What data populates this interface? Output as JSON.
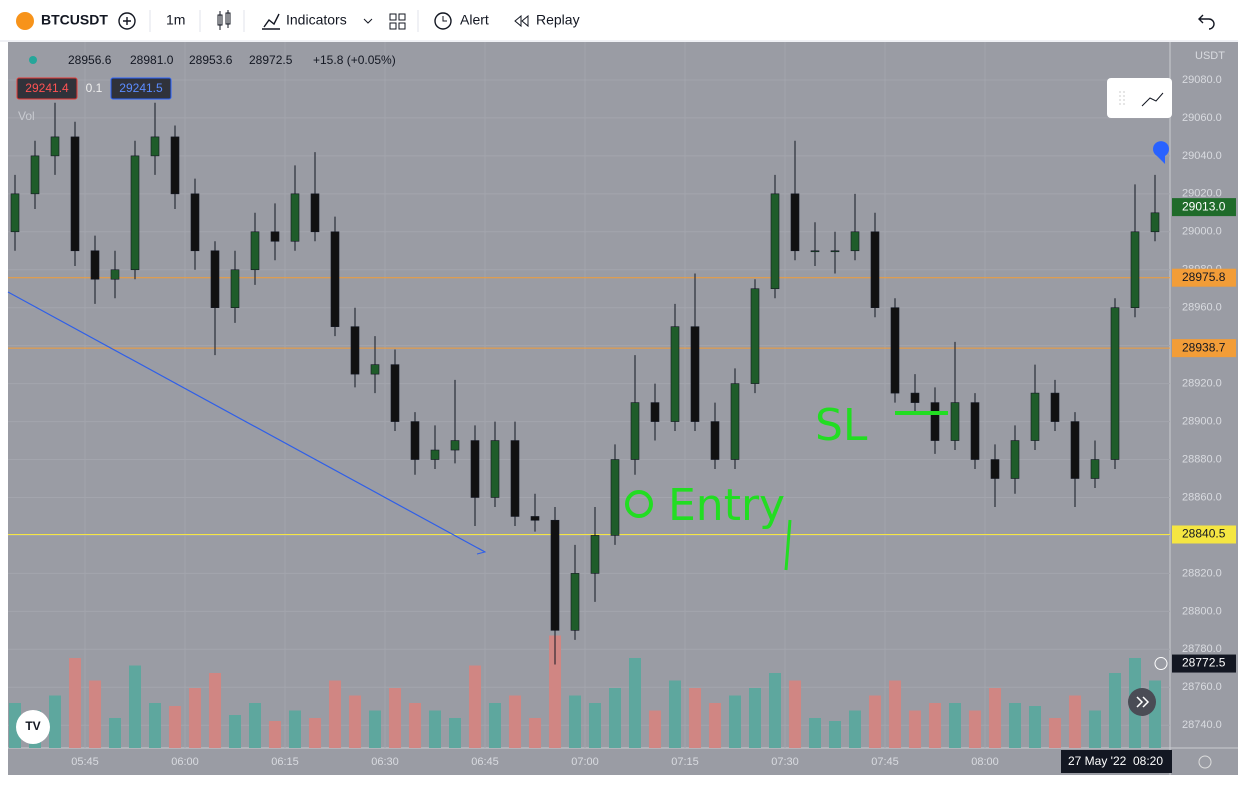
{
  "toolbar": {
    "symbol": "BTCUSDT",
    "interval": "1m",
    "indicators": "Indicators",
    "alert": "Alert",
    "replay": "Replay"
  },
  "legend": {
    "open": "28956.6",
    "high": "28981.0",
    "low": "28953.6",
    "close": "28972.5",
    "change": "+15.8 (+0.05%)",
    "bid": "29241.4",
    "spread": "0.1",
    "ask": "29241.5",
    "volume": "Vol"
  },
  "chart_data": {
    "type": "candlestick",
    "currency": "USDT",
    "x_labels": [
      "05:45",
      "06:00",
      "06:15",
      "06:30",
      "06:45",
      "07:00",
      "07:15",
      "07:30",
      "07:45",
      "08:00"
    ],
    "date_label": "27 May '22",
    "time_label": "08:20",
    "ylim": [
      28728,
      29100
    ],
    "yticks": [
      {
        "value": 29080,
        "label": "29080.0"
      },
      {
        "value": 29060,
        "label": "29060.0"
      },
      {
        "value": 29040,
        "label": "29040.0"
      },
      {
        "value": 29020,
        "label": "29020.0"
      },
      {
        "value": 29000,
        "label": "29000.0"
      },
      {
        "value": 28980,
        "label": "28980.0"
      },
      {
        "value": 28960,
        "label": "28960.0"
      },
      {
        "value": 28940,
        "label": "28940.0"
      },
      {
        "value": 28920,
        "label": "28920.0"
      },
      {
        "value": 28900,
        "label": "28900.0"
      },
      {
        "value": 28880,
        "label": "28880.0"
      },
      {
        "value": 28860,
        "label": "28860.0"
      },
      {
        "value": 28840,
        "label": "28840.0"
      },
      {
        "value": 28820,
        "label": "28820.0"
      },
      {
        "value": 28800,
        "label": "28800.0"
      },
      {
        "value": 28780,
        "label": "28780.0"
      },
      {
        "value": 28760,
        "label": "28760.0"
      },
      {
        "value": 28740,
        "label": "28740.0"
      }
    ],
    "grid": true,
    "up_color": "#1f5c2a",
    "down_color": "#111111",
    "volume_up_color": "#5ea79e",
    "volume_down_color": "#d08683",
    "price_lines": [
      {
        "value": 28975.8,
        "color": "#f29d38"
      },
      {
        "value": 28938.7,
        "color": "#f29d38"
      },
      {
        "value": 28840.5,
        "color": "#f5e642"
      }
    ],
    "last_price": {
      "value": 29013.0,
      "label": "29013.0",
      "color": "#1f6b2a"
    },
    "crosshair_price": 28772.5,
    "annotations": {
      "entry": "Entry",
      "stop_loss": "SL"
    },
    "candles": [
      [
        29000,
        29030,
        28990,
        29020,
        30
      ],
      [
        29020,
        29048,
        29012,
        29040,
        25
      ],
      [
        29040,
        29068,
        29030,
        29050,
        35
      ],
      [
        29050,
        29058,
        28982,
        28990,
        60
      ],
      [
        28990,
        28998,
        28962,
        28975,
        45
      ],
      [
        28975,
        28990,
        28965,
        28980,
        20
      ],
      [
        28980,
        29048,
        28975,
        29040,
        55
      ],
      [
        29040,
        29068,
        29030,
        29050,
        30
      ],
      [
        29050,
        29056,
        29012,
        29020,
        28
      ],
      [
        29020,
        29028,
        28980,
        28990,
        40
      ],
      [
        28990,
        28995,
        28935,
        28960,
        50
      ],
      [
        28960,
        28990,
        28952,
        28980,
        22
      ],
      [
        28980,
        29010,
        28972,
        29000,
        30
      ],
      [
        29000,
        29015,
        28985,
        28995,
        18
      ],
      [
        28995,
        29035,
        28990,
        29020,
        25
      ],
      [
        29020,
        29042,
        28995,
        29000,
        20
      ],
      [
        29000,
        29008,
        28945,
        28950,
        45
      ],
      [
        28950,
        28960,
        28918,
        28925,
        35
      ],
      [
        28925,
        28945,
        28915,
        28930,
        25
      ],
      [
        28930,
        28938,
        28895,
        28900,
        40
      ],
      [
        28900,
        28905,
        28872,
        28880,
        30
      ],
      [
        28880,
        28898,
        28875,
        28885,
        25
      ],
      [
        28885,
        28922,
        28878,
        28890,
        20
      ],
      [
        28890,
        28898,
        28845,
        28860,
        55
      ],
      [
        28860,
        28900,
        28855,
        28890,
        30
      ],
      [
        28890,
        28900,
        28845,
        28850,
        35
      ],
      [
        28850,
        28862,
        28842,
        28848,
        20
      ],
      [
        28848,
        28855,
        28772,
        28790,
        75
      ],
      [
        28790,
        28835,
        28785,
        28820,
        35
      ],
      [
        28820,
        28855,
        28805,
        28840,
        30
      ],
      [
        28840,
        28888,
        28835,
        28880,
        40
      ],
      [
        28880,
        28935,
        28872,
        28910,
        60
      ],
      [
        28910,
        28920,
        28890,
        28900,
        25
      ],
      [
        28900,
        28962,
        28895,
        28950,
        45
      ],
      [
        28950,
        28978,
        28895,
        28900,
        40
      ],
      [
        28900,
        28910,
        28875,
        28880,
        30
      ],
      [
        28880,
        28928,
        28875,
        28920,
        35
      ],
      [
        28920,
        28975,
        28915,
        28970,
        40
      ],
      [
        28970,
        29030,
        28965,
        29020,
        50
      ],
      [
        29020,
        29048,
        28985,
        28990,
        45
      ],
      [
        28990,
        29005,
        28982,
        28990,
        20
      ],
      [
        28990,
        29000,
        28978,
        28990,
        18
      ],
      [
        28990,
        29020,
        28985,
        29000,
        25
      ],
      [
        29000,
        29010,
        28955,
        28960,
        35
      ],
      [
        28960,
        28965,
        28910,
        28915,
        45
      ],
      [
        28915,
        28925,
        28905,
        28910,
        25
      ],
      [
        28910,
        28918,
        28883,
        28890,
        30
      ],
      [
        28890,
        28942,
        28885,
        28910,
        30
      ],
      [
        28910,
        28915,
        28875,
        28880,
        25
      ],
      [
        28880,
        28888,
        28855,
        28870,
        40
      ],
      [
        28870,
        28898,
        28862,
        28890,
        30
      ],
      [
        28890,
        28930,
        28885,
        28915,
        28
      ],
      [
        28915,
        28922,
        28895,
        28900,
        20
      ],
      [
        28900,
        28905,
        28855,
        28870,
        35
      ],
      [
        28870,
        28890,
        28865,
        28880,
        25
      ],
      [
        28880,
        28965,
        28875,
        28960,
        50
      ],
      [
        28960,
        29025,
        28955,
        29000,
        60
      ],
      [
        29000,
        29030,
        28995,
        29010,
        45
      ]
    ]
  }
}
